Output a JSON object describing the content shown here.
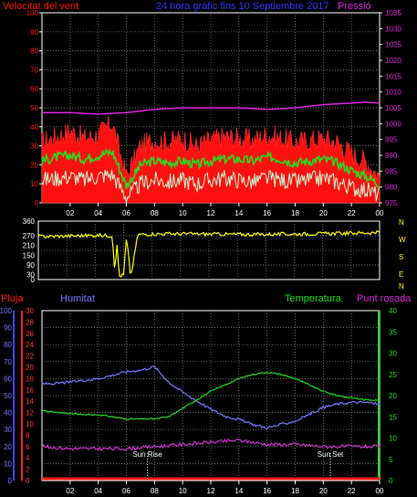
{
  "colors": {
    "wind_speed": "#ff1010",
    "wind_avg": "#22e022",
    "wind_min": "#c8ffd4",
    "pressure": "#dd22dd",
    "direction": "#ffff00",
    "rain": "#ff1a1a",
    "humidity": "#7777ff",
    "temperature": "#22dd22",
    "dewpoint": "#cc33cc",
    "grid": "#8a8a8a",
    "frame": "#ffffff"
  },
  "header": {
    "left": "Velocitat del vent",
    "center": "24 hora gràfic fins 10 Septiembre 2017",
    "right": "Pressió"
  },
  "time_ticks": [
    "02",
    "04",
    "06",
    "08",
    "10",
    "12",
    "14",
    "16",
    "18",
    "20",
    "22",
    "00"
  ],
  "chart_data": [
    {
      "type": "line",
      "id": "wind",
      "title": "Velocitat del vent",
      "right_label": "Pressió",
      "ylim": [
        0,
        100
      ],
      "y_ticks": [
        0,
        10,
        20,
        30,
        40,
        50,
        60,
        70,
        80,
        90,
        100
      ],
      "y2lim": [
        975,
        1035
      ],
      "y2_ticks": [
        975,
        980,
        985,
        990,
        995,
        1000,
        1005,
        1010,
        1015,
        1020,
        1025,
        1030,
        1035
      ],
      "series": [
        {
          "key": "gust",
          "x": [
            0,
            1,
            2,
            3,
            4,
            5,
            5.5,
            6,
            6.5,
            7,
            8,
            9,
            10,
            11,
            12,
            13,
            14,
            15,
            16,
            17,
            18,
            19,
            20,
            21,
            22,
            23,
            24
          ],
          "values": [
            32,
            35,
            38,
            34,
            36,
            42,
            28,
            14,
            22,
            30,
            33,
            32,
            34,
            30,
            33,
            35,
            34,
            33,
            36,
            34,
            32,
            33,
            34,
            32,
            26,
            22,
            14
          ]
        },
        {
          "key": "avg",
          "x": [
            0,
            1,
            2,
            3,
            4,
            5,
            5.5,
            6,
            6.5,
            7,
            8,
            9,
            10,
            11,
            12,
            13,
            14,
            15,
            16,
            17,
            18,
            19,
            20,
            21,
            22,
            23,
            24
          ],
          "values": [
            22,
            24,
            25,
            23,
            25,
            27,
            18,
            9,
            14,
            20,
            22,
            21,
            22,
            20,
            22,
            23,
            23,
            22,
            24,
            23,
            21,
            22,
            23,
            21,
            17,
            14,
            10
          ]
        },
        {
          "key": "min",
          "x": [
            0,
            1,
            2,
            3,
            4,
            5,
            5.5,
            6,
            6.5,
            7,
            8,
            9,
            10,
            11,
            12,
            13,
            14,
            15,
            16,
            17,
            18,
            19,
            20,
            21,
            22,
            23,
            24
          ],
          "values": [
            12,
            13,
            14,
            12,
            14,
            15,
            9,
            3,
            6,
            10,
            12,
            11,
            12,
            10,
            12,
            13,
            12,
            11,
            13,
            12,
            11,
            12,
            13,
            11,
            8,
            7,
            4
          ]
        },
        {
          "key": "pressure",
          "x": [
            0,
            2,
            4,
            6,
            8,
            10,
            12,
            14,
            16,
            18,
            20,
            22,
            23,
            24
          ],
          "values": [
            1003.5,
            1003.5,
            1003,
            1003.5,
            1004.5,
            1005,
            1005,
            1005,
            1004.5,
            1005,
            1006,
            1006.5,
            1006.8,
            1006.5
          ]
        }
      ]
    },
    {
      "type": "line",
      "id": "direction",
      "y_ticks": [
        0,
        30,
        90,
        150,
        210,
        270,
        360
      ],
      "ylim": [
        0,
        360
      ],
      "right_letters": [
        "N",
        "W",
        "S",
        "E",
        "N"
      ],
      "series": [
        {
          "key": "direction",
          "x": [
            0,
            2,
            4,
            5.2,
            5.4,
            5.5,
            5.7,
            6.0,
            6.2,
            6.5,
            7,
            9,
            12,
            15,
            18,
            21,
            24
          ],
          "values": [
            265,
            268,
            272,
            270,
            30,
            250,
            20,
            30,
            260,
            15,
            278,
            282,
            280,
            278,
            280,
            284,
            290
          ]
        }
      ]
    },
    {
      "type": "line",
      "id": "weather",
      "labels": {
        "rain": "Pluja",
        "humidity": "Humitat",
        "temperature": "Temperatura",
        "dewpoint": "Punt rosada"
      },
      "humidity_ticks": [
        0,
        10,
        20,
        30,
        40,
        50,
        60,
        70,
        80,
        90,
        100
      ],
      "rain_ticks": [
        0,
        2,
        4,
        6,
        8,
        10,
        12,
        14,
        16,
        18,
        20,
        22,
        24,
        26,
        28,
        30
      ],
      "temp_ticks": [
        0,
        5,
        10,
        15,
        20,
        25,
        30,
        35,
        40
      ],
      "humidity_lim": [
        0,
        100
      ],
      "temp_lim": [
        0,
        40
      ],
      "annotations": [
        {
          "label": "Sun Rise",
          "x": 7.5
        },
        {
          "label": "Sun Set",
          "x": 20.5
        }
      ],
      "series": [
        {
          "key": "humidity",
          "x": [
            0,
            1,
            2,
            3,
            4,
            5,
            6,
            7,
            8,
            9,
            10,
            11,
            12,
            13,
            14,
            15,
            16,
            17,
            18,
            19,
            20,
            21,
            22,
            23,
            24
          ],
          "values": [
            57,
            57,
            58,
            59,
            60,
            62,
            64,
            65,
            67,
            58,
            52,
            47,
            42,
            38,
            36,
            33,
            31,
            33,
            35,
            39,
            43,
            45,
            46,
            46,
            45
          ]
        },
        {
          "key": "temperature",
          "x": [
            0,
            1,
            2,
            3,
            4,
            5,
            6,
            7,
            8,
            9,
            10,
            11,
            12,
            13,
            14,
            15,
            16,
            17,
            18,
            19,
            20,
            21,
            22,
            23,
            24
          ],
          "values": [
            16.5,
            16,
            15.8,
            15.5,
            15.5,
            15,
            14.5,
            14.5,
            14.5,
            15,
            17,
            19,
            21,
            22.5,
            24,
            25,
            25.5,
            25,
            24,
            22.5,
            21,
            20,
            19.5,
            19,
            19
          ]
        },
        {
          "key": "dewpoint",
          "x": [
            0,
            2,
            4,
            6,
            8,
            10,
            12,
            14,
            16,
            18,
            20,
            22,
            24
          ],
          "values": [
            8,
            7.5,
            7.5,
            7.5,
            8,
            8.5,
            9,
            9.5,
            8.5,
            8.5,
            8,
            8,
            8
          ]
        },
        {
          "key": "rain",
          "x": [
            0,
            24
          ],
          "values": [
            0,
            0
          ]
        }
      ]
    }
  ]
}
